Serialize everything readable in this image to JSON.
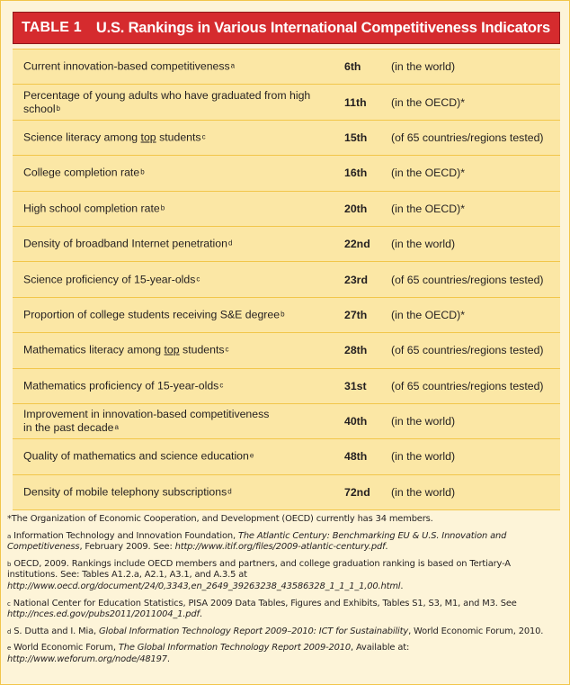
{
  "title": {
    "table_no": "TABLE 1",
    "text": "U.S. Rankings in Various International Competitiveness Indicators"
  },
  "rows": [
    {
      "pre": "Current innovation-based competitiveness",
      "u": "",
      "post": "",
      "sup": "a",
      "rank": "6th",
      "scope": "(in the world)"
    },
    {
      "pre": "Percentage of young adults who have graduated from high school",
      "u": "",
      "post": "",
      "sup": "b",
      "rank": "11th",
      "scope": "(in the OECD)*"
    },
    {
      "pre": "Science literacy among ",
      "u": "top",
      "post": " students",
      "sup": "c",
      "rank": "15th",
      "scope": "(of 65 countries/regions tested)"
    },
    {
      "pre": "College completion rate",
      "u": "",
      "post": "",
      "sup": "b",
      "rank": "16th",
      "scope": "(in the OECD)*"
    },
    {
      "pre": "High school completion rate",
      "u": "",
      "post": "",
      "sup": "b",
      "rank": "20th",
      "scope": "(in the OECD)*"
    },
    {
      "pre": "Density of broadband Internet penetration",
      "u": "",
      "post": "",
      "sup": "d",
      "rank": "22nd",
      "scope": "(in the world)"
    },
    {
      "pre": "Science proficiency of 15-year-olds",
      "u": "",
      "post": "",
      "sup": "c",
      "rank": "23rd",
      "scope": "(of 65 countries/regions tested)"
    },
    {
      "pre": "Proportion of college students receiving S&E degree",
      "u": "",
      "post": "",
      "sup": "b",
      "rank": "27th",
      "scope": "(in the OECD)*"
    },
    {
      "pre": "Mathematics literacy among ",
      "u": "top",
      "post": " students",
      "sup": "c",
      "rank": "28th",
      "scope": "(of 65 countries/regions tested)"
    },
    {
      "pre": "Mathematics proficiency of 15-year-olds",
      "u": "",
      "post": "",
      "sup": "c",
      "rank": "31st",
      "scope": "(of 65 countries/regions tested)"
    },
    {
      "pre": "Improvement in innovation-based competitiveness in the past decade",
      "u": "",
      "post": "",
      "sup": "a",
      "rank": "40th",
      "scope": "(in the world)"
    },
    {
      "pre": "Quality of mathematics and science education",
      "u": "",
      "post": "",
      "sup": "e",
      "rank": "48th",
      "scope": "(in the world)"
    },
    {
      "pre": "Density of mobile telephony subscriptions",
      "u": "",
      "post": "",
      "sup": "d",
      "rank": "72nd",
      "scope": "(in the world)"
    }
  ],
  "notes": {
    "star": "*The Organization of Economic Cooperation, and Development (OECD) currently has 34 members.",
    "a": {
      "mark": "a",
      "t1": "Information Technology and Innovation Foundation, ",
      "i1": "The Atlantic Century: Benchmarking EU & U.S. Innovation and Competitiveness",
      "t2": ", February 2009. See: ",
      "i2": "http://www.itif.org/files/2009-atlantic-century.pdf",
      "t3": "."
    },
    "b": {
      "mark": "b",
      "t1": "OECD, 2009. Rankings include OECD members and partners, and college graduation ranking is based on Tertiary-A institutions. See: Tables A1.2.a, A2.1, A3.1, and A.3.5 at ",
      "i1": "http://www.oecd.org/document/24/0,3343,en_2649_39263238_43586328_1_1_1_1,00.html",
      "t2": "."
    },
    "c": {
      "mark": "c",
      "t1": "National Center for Education Statistics, PISA 2009 Data Tables, Figures and Exhibits, Tables S1, S3, M1, and M3. See ",
      "i1": "http://nces.ed.gov/pubs2011/2011004_1.pdf",
      "t2": "."
    },
    "d": {
      "mark": "d",
      "t1": "S. Dutta and I. Mia, ",
      "i1": "Global Information Technology Report 2009–2010: ICT for Sustainability",
      "t2": ", World Economic Forum, 2010."
    },
    "e": {
      "mark": "e",
      "t1": "World Economic Forum, ",
      "i1": "The Global Information Technology Report 2009-2010",
      "t2": ", Available at: ",
      "i2": "http://www.weforum.org/node/48197",
      "t3": "."
    }
  }
}
